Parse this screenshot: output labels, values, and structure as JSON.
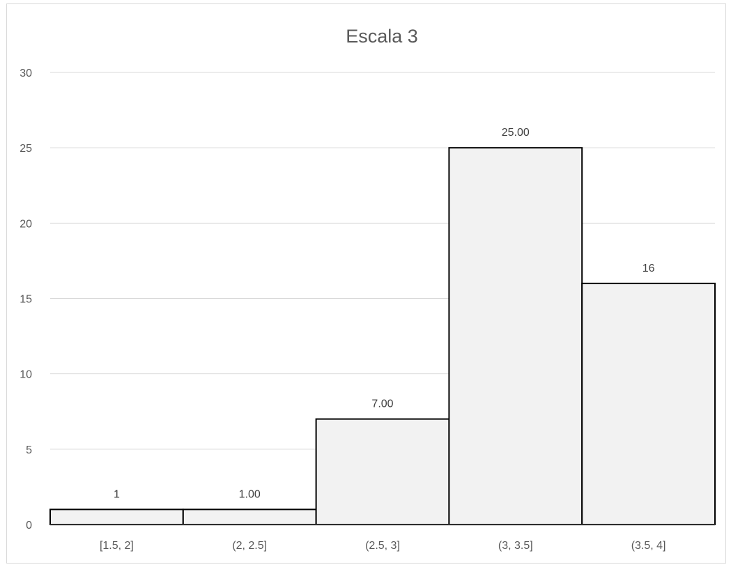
{
  "chart_data": {
    "type": "bar",
    "title": "Escala 3",
    "xlabel": "",
    "ylabel": "",
    "categories": [
      "[1.5, 2]",
      "(2, 2.5]",
      "(2.5, 3]",
      "(3, 3.5]",
      "(3.5, 4]"
    ],
    "values": [
      1,
      1,
      7,
      25,
      16
    ],
    "data_labels": [
      "1",
      "1.00",
      "7.00",
      "25.00",
      "16"
    ],
    "ylim": [
      0,
      30
    ],
    "yticks": [
      "0",
      "5",
      "10",
      "15",
      "20",
      "25",
      "30"
    ],
    "grid": true,
    "legend": "none",
    "colors": {
      "bar_fill": "#f2f2f2",
      "bar_stroke": "#000000",
      "grid": "#d9d9d9",
      "text": "#595959"
    }
  }
}
